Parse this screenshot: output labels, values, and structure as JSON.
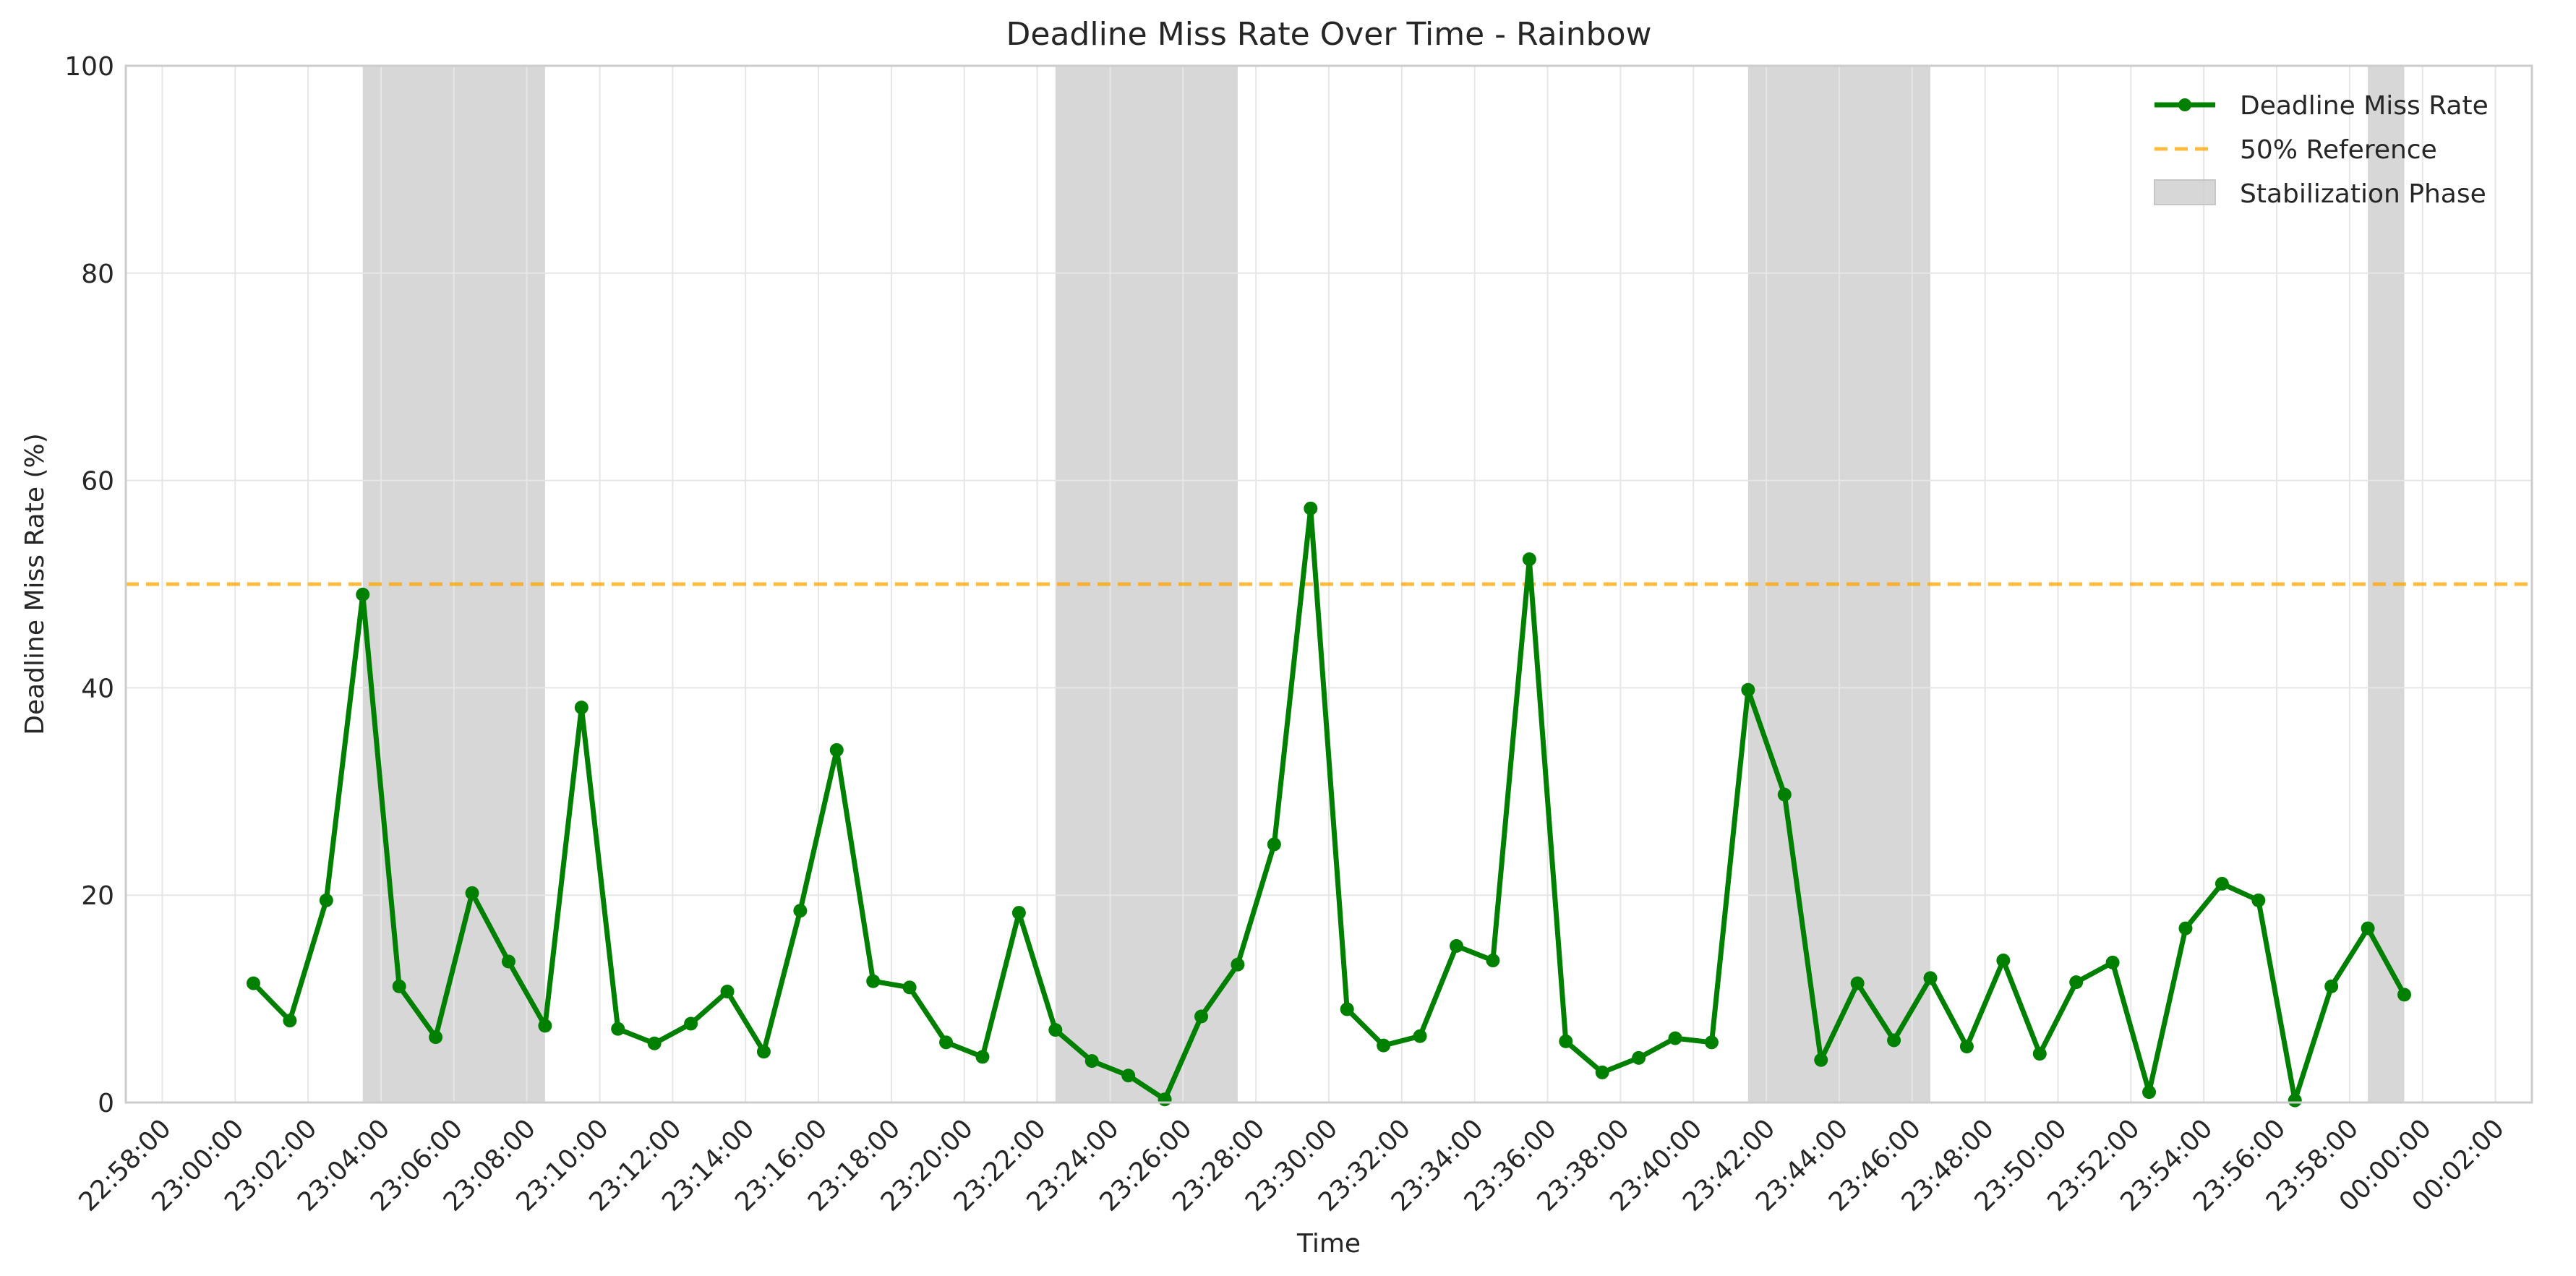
{
  "chart_data": {
    "type": "line",
    "title": "Deadline Miss Rate Over Time - Rainbow",
    "xlabel": "Time",
    "ylabel": "Deadline Miss Rate (%)",
    "ylim": [
      0,
      100
    ],
    "yticks": [
      0,
      20,
      40,
      60,
      80,
      100
    ],
    "xlim": [
      "22:57:00",
      "00:03:00"
    ],
    "xticks": [
      "22:58:00",
      "23:00:00",
      "23:02:00",
      "23:04:00",
      "23:06:00",
      "23:08:00",
      "23:10:00",
      "23:12:00",
      "23:14:00",
      "23:16:00",
      "23:18:00",
      "23:20:00",
      "23:22:00",
      "23:24:00",
      "23:26:00",
      "23:28:00",
      "23:30:00",
      "23:32:00",
      "23:34:00",
      "23:36:00",
      "23:38:00",
      "23:40:00",
      "23:42:00",
      "23:44:00",
      "23:46:00",
      "23:48:00",
      "23:50:00",
      "23:52:00",
      "23:54:00",
      "23:56:00",
      "23:58:00",
      "00:00:00",
      "00:02:00"
    ],
    "grid": true,
    "legend_position": "top-right",
    "colors": {
      "series": "#008000",
      "reference": "#ffa500",
      "band": "#d3d3d3",
      "frame": "#cccccc"
    },
    "series": [
      {
        "name": "Deadline Miss Rate",
        "x": [
          "23:00:30",
          "23:01:30",
          "23:02:30",
          "23:03:30",
          "23:04:30",
          "23:05:30",
          "23:06:30",
          "23:07:30",
          "23:08:30",
          "23:09:30",
          "23:10:30",
          "23:11:30",
          "23:12:30",
          "23:13:30",
          "23:14:30",
          "23:15:30",
          "23:16:30",
          "23:17:30",
          "23:18:30",
          "23:19:30",
          "23:20:30",
          "23:21:30",
          "23:22:30",
          "23:23:30",
          "23:24:30",
          "23:25:30",
          "23:26:30",
          "23:27:30",
          "23:28:30",
          "23:29:30",
          "23:30:30",
          "23:31:30",
          "23:32:30",
          "23:33:30",
          "23:34:30",
          "23:35:30",
          "23:36:30",
          "23:37:30",
          "23:38:30",
          "23:39:30",
          "23:40:30",
          "23:41:30",
          "23:42:30",
          "23:43:30",
          "23:44:30",
          "23:45:30",
          "23:46:30",
          "23:47:30",
          "23:48:30",
          "23:49:30",
          "23:50:30",
          "23:51:30",
          "23:52:30",
          "23:53:30",
          "23:54:30",
          "23:55:30",
          "23:56:30",
          "23:57:30",
          "23:58:30",
          "23:59:30"
        ],
        "y": [
          11.5,
          7.9,
          19.5,
          49.0,
          11.2,
          6.3,
          20.2,
          13.6,
          7.4,
          38.1,
          7.1,
          5.7,
          7.6,
          10.7,
          4.9,
          18.5,
          34.0,
          11.7,
          11.1,
          5.8,
          4.4,
          18.3,
          7.0,
          4.0,
          2.6,
          0.3,
          8.3,
          13.3,
          24.9,
          57.3,
          9.0,
          5.5,
          6.4,
          15.1,
          13.7,
          52.4,
          5.9,
          2.9,
          4.3,
          6.2,
          5.8,
          39.8,
          29.7,
          4.1,
          11.5,
          6.0,
          12.0,
          5.4,
          13.7,
          4.7,
          11.6,
          13.5,
          1.0,
          16.8,
          21.1,
          19.5,
          0.2,
          11.2,
          16.8,
          10.4
        ]
      }
    ],
    "reference_line": {
      "name": "50% Reference",
      "y": 50
    },
    "bands": {
      "name": "Stabilization Phase",
      "ranges": [
        [
          "23:03:30",
          "23:08:30"
        ],
        [
          "23:22:30",
          "23:27:30"
        ],
        [
          "23:41:30",
          "23:46:30"
        ],
        [
          "23:58:30",
          "23:59:30"
        ]
      ]
    }
  }
}
